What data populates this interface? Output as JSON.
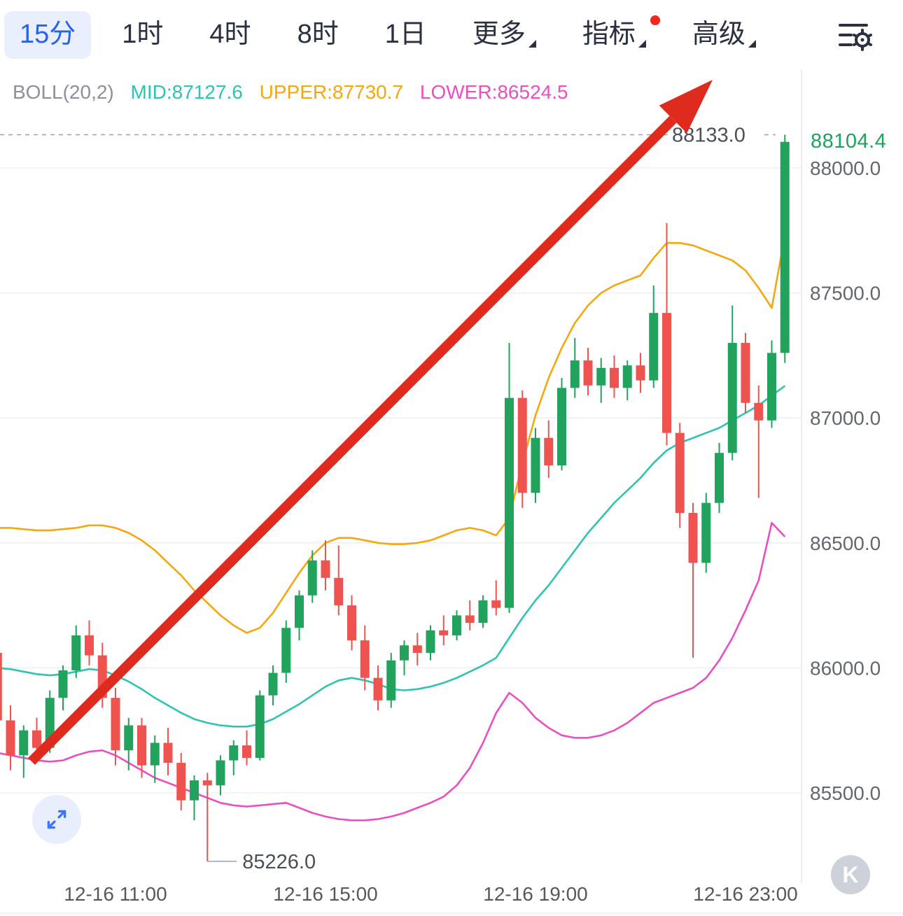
{
  "toolbar": {
    "tabs": [
      {
        "label": "15分",
        "active": true
      },
      {
        "label": "1时",
        "active": false
      },
      {
        "label": "4时",
        "active": false
      },
      {
        "label": "8时",
        "active": false
      },
      {
        "label": "1日",
        "active": false
      }
    ],
    "more_label": "更多",
    "indicators_label": "指标",
    "indicators_has_notification": true,
    "advanced_label": "高级"
  },
  "legend": {
    "name": "BOLL(20,2)",
    "mid": "MID:87127.6",
    "upper": "UPPER:87730.7",
    "lower": "LOWER:86524.5"
  },
  "watermark": "K",
  "chart_data": {
    "type": "candlestick",
    "interval": "15m",
    "indicator": "BOLL(20,2)",
    "grid": true,
    "current_price": 88104.4,
    "high_marker": 88133.0,
    "low_marker": 85226.0,
    "low_marker_index": 16,
    "y_ticks": [
      88000,
      87500,
      87000,
      86500,
      86000,
      85500
    ],
    "ylim": [
      85226,
      88133
    ],
    "x_axis_labels": [
      {
        "label": "12-16 11:00",
        "index": 9
      },
      {
        "label": "12-16 15:00",
        "index": 25
      },
      {
        "label": "12-16 19:00",
        "index": 41
      },
      {
        "label": "12-16 23:00",
        "index": 57
      }
    ],
    "candles_format": [
      "time",
      "open",
      "high",
      "low",
      "close"
    ],
    "candles": [
      [
        "08:45",
        86060,
        86090,
        85740,
        85790
      ],
      [
        "09:00",
        85790,
        85850,
        85590,
        85650
      ],
      [
        "09:15",
        85650,
        85770,
        85560,
        85750
      ],
      [
        "09:30",
        85750,
        85800,
        85630,
        85680
      ],
      [
        "09:45",
        85680,
        85910,
        85660,
        85880
      ],
      [
        "10:00",
        85880,
        86010,
        85830,
        85990
      ],
      [
        "10:15",
        85990,
        86170,
        85960,
        86130
      ],
      [
        "10:30",
        86130,
        86190,
        86010,
        86050
      ],
      [
        "10:45",
        86050,
        86100,
        85840,
        85880
      ],
      [
        "11:00",
        85880,
        85920,
        85610,
        85670
      ],
      [
        "11:15",
        85670,
        85800,
        85590,
        85770
      ],
      [
        "11:30",
        85770,
        85800,
        85560,
        85610
      ],
      [
        "11:45",
        85610,
        85730,
        85540,
        85700
      ],
      [
        "12:00",
        85700,
        85760,
        85570,
        85620
      ],
      [
        "12:15",
        85620,
        85660,
        85430,
        85470
      ],
      [
        "12:30",
        85470,
        85570,
        85390,
        85550
      ],
      [
        "12:45",
        85550,
        85580,
        85226,
        85530
      ],
      [
        "13:00",
        85530,
        85650,
        85490,
        85630
      ],
      [
        "13:15",
        85630,
        85710,
        85570,
        85690
      ],
      [
        "13:30",
        85690,
        85750,
        85610,
        85640
      ],
      [
        "13:45",
        85640,
        85910,
        85630,
        85890
      ],
      [
        "14:00",
        85890,
        86010,
        85850,
        85980
      ],
      [
        "14:15",
        85980,
        86190,
        85940,
        86160
      ],
      [
        "14:30",
        86160,
        86310,
        86110,
        86290
      ],
      [
        "14:45",
        86290,
        86470,
        86260,
        86430
      ],
      [
        "15:00",
        86430,
        86510,
        86310,
        86360
      ],
      [
        "15:15",
        86360,
        86490,
        86210,
        86250
      ],
      [
        "15:30",
        86250,
        86290,
        86070,
        86110
      ],
      [
        "15:45",
        86110,
        86170,
        85910,
        85960
      ],
      [
        "16:00",
        85960,
        86010,
        85830,
        85870
      ],
      [
        "16:15",
        85870,
        86060,
        85840,
        86030
      ],
      [
        "16:30",
        86030,
        86110,
        85970,
        86090
      ],
      [
        "16:45",
        86090,
        86140,
        86010,
        86060
      ],
      [
        "17:00",
        86060,
        86170,
        86030,
        86150
      ],
      [
        "17:15",
        86150,
        86210,
        86090,
        86130
      ],
      [
        "17:30",
        86130,
        86230,
        86110,
        86210
      ],
      [
        "17:45",
        86210,
        86270,
        86150,
        86180
      ],
      [
        "18:00",
        86180,
        86290,
        86160,
        86270
      ],
      [
        "18:15",
        86270,
        86350,
        86210,
        86240
      ],
      [
        "18:30",
        86240,
        87300,
        86220,
        87080
      ],
      [
        "18:45",
        87080,
        87110,
        86640,
        86700
      ],
      [
        "19:00",
        86700,
        86960,
        86660,
        86920
      ],
      [
        "19:15",
        86920,
        86990,
        86760,
        86810
      ],
      [
        "19:30",
        86810,
        87160,
        86790,
        87120
      ],
      [
        "19:45",
        87120,
        87320,
        87080,
        87230
      ],
      [
        "20:00",
        87230,
        87280,
        87090,
        87130
      ],
      [
        "20:15",
        87130,
        87240,
        87060,
        87200
      ],
      [
        "20:30",
        87200,
        87250,
        87080,
        87120
      ],
      [
        "20:45",
        87120,
        87230,
        87070,
        87210
      ],
      [
        "21:00",
        87210,
        87260,
        87100,
        87150
      ],
      [
        "21:15",
        87150,
        87530,
        87120,
        87420
      ],
      [
        "21:30",
        87420,
        87780,
        86890,
        86940
      ],
      [
        "21:45",
        86940,
        86980,
        86560,
        86620
      ],
      [
        "22:00",
        86620,
        86660,
        86040,
        86420
      ],
      [
        "22:15",
        86420,
        86700,
        86380,
        86660
      ],
      [
        "22:30",
        86660,
        86900,
        86620,
        86860
      ],
      [
        "22:45",
        86860,
        87450,
        86830,
        87300
      ],
      [
        "23:00",
        87300,
        87340,
        87020,
        87060
      ],
      [
        "23:15",
        87060,
        87130,
        86680,
        86990
      ],
      [
        "23:30",
        86990,
        87310,
        86960,
        87260
      ],
      [
        "23:45",
        87260,
        88133,
        87220,
        88104.4
      ]
    ],
    "boll": {
      "mid": [
        86000,
        85995,
        85985,
        85975,
        85970,
        85975,
        85985,
        85995,
        85990,
        85970,
        85945,
        85915,
        85880,
        85850,
        85820,
        85795,
        85780,
        85770,
        85765,
        85765,
        85775,
        85795,
        85825,
        85855,
        85890,
        85925,
        85950,
        85960,
        85950,
        85935,
        85915,
        85910,
        85915,
        85925,
        85940,
        85960,
        85985,
        86010,
        86040,
        86120,
        86200,
        86270,
        86330,
        86400,
        86470,
        86540,
        86600,
        86660,
        86710,
        86760,
        86820,
        86870,
        86900,
        86920,
        86940,
        86960,
        86990,
        87020,
        87050,
        87090,
        87127.6
      ],
      "upper": [
        86560,
        86560,
        86555,
        86550,
        86550,
        86555,
        86560,
        86570,
        86570,
        86560,
        86540,
        86510,
        86470,
        86420,
        86370,
        86310,
        86260,
        86210,
        86170,
        86140,
        86160,
        86220,
        86300,
        86380,
        86450,
        86500,
        86520,
        86520,
        86510,
        86500,
        86495,
        86495,
        86500,
        86510,
        86530,
        86550,
        86560,
        86550,
        86530,
        86600,
        86820,
        87010,
        87160,
        87280,
        87380,
        87450,
        87500,
        87530,
        87550,
        87570,
        87640,
        87700,
        87700,
        87690,
        87670,
        87650,
        87630,
        87590,
        87520,
        87440,
        87730.7
      ],
      "lower": [
        85660,
        85650,
        85640,
        85630,
        85625,
        85630,
        85650,
        85665,
        85670,
        85650,
        85620,
        85590,
        85560,
        85540,
        85520,
        85500,
        85480,
        85460,
        85450,
        85445,
        85450,
        85455,
        85460,
        85440,
        85420,
        85405,
        85395,
        85390,
        85390,
        85395,
        85405,
        85420,
        85440,
        85460,
        85485,
        85530,
        85600,
        85700,
        85820,
        85900,
        85860,
        85800,
        85760,
        85730,
        85720,
        85720,
        85730,
        85750,
        85780,
        85820,
        85860,
        85880,
        85900,
        85920,
        85960,
        86030,
        86120,
        86230,
        86350,
        86580,
        86524.5
      ]
    },
    "colors": {
      "up": "#21a35e",
      "down": "#ef5350",
      "mid": "#2fc3b2",
      "upper": "#f5a80e",
      "lower": "#ea4fc1",
      "arrow": "#df2b1d",
      "grid": "#ededed"
    },
    "annotation_arrow": {
      "from": [
        45,
        988
      ],
      "to": [
        1018,
        14
      ]
    }
  }
}
